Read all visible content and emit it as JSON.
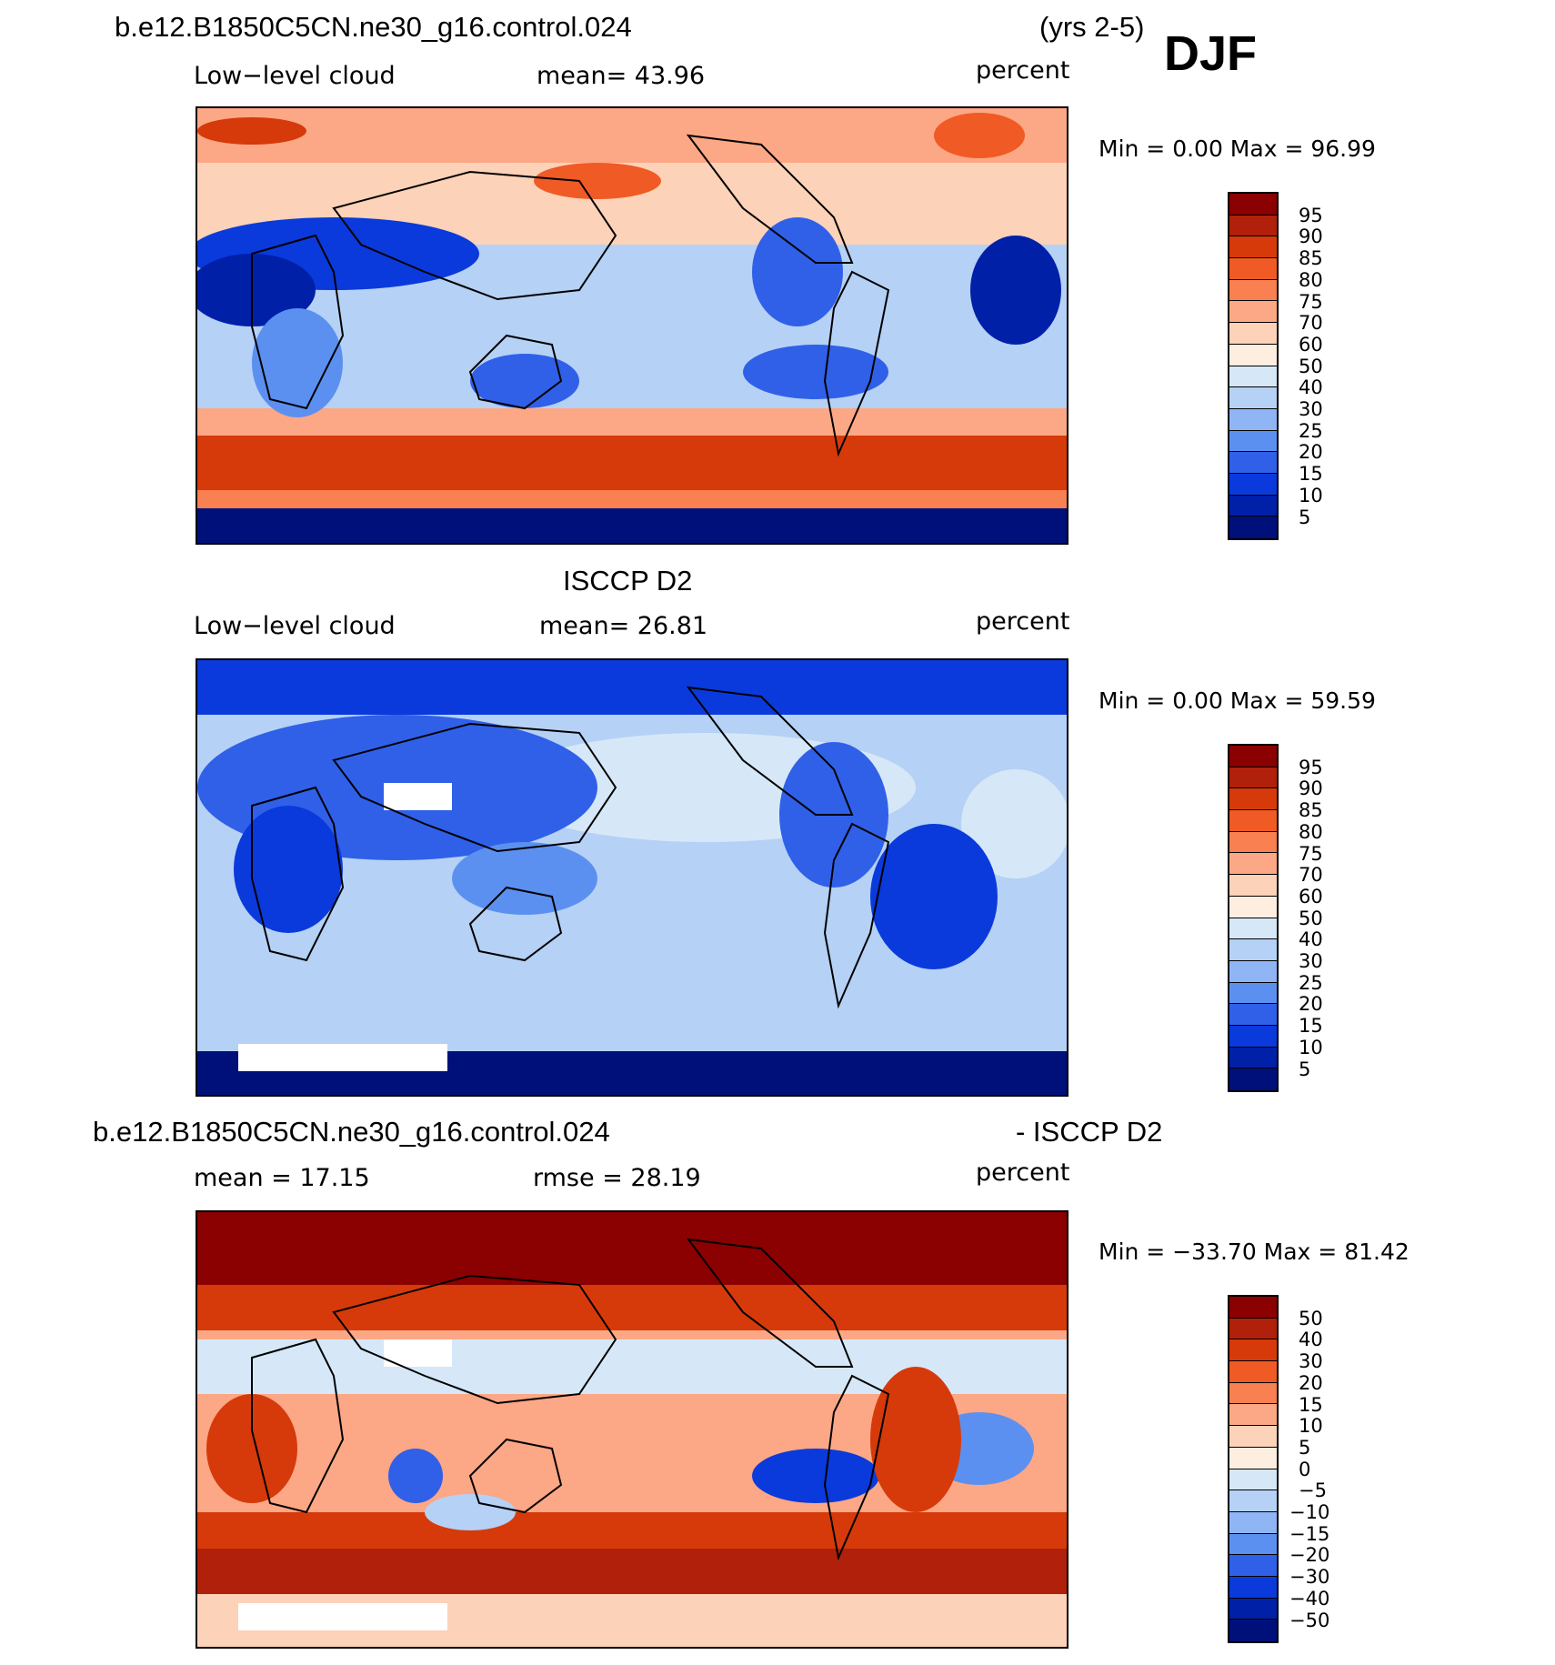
{
  "season": "DJF",
  "years": "(yrs 2-5)",
  "case_name": "b.e12.B1850C5CN.ne30_g16.control.024",
  "panels": [
    {
      "variable": "Low−level cloud",
      "stat": "mean=   43.96",
      "units": "percent",
      "minmax": "Min =     0.00 Max =   96.99",
      "colorbar": {
        "colors": [
          "#8b0000",
          "#b0200a",
          "#d63a0a",
          "#f05a25",
          "#f98050",
          "#fca785",
          "#fcd2b8",
          "#fdeee0",
          "#d6e8f8",
          "#b5d1f5",
          "#8fb5f5",
          "#5c90f0",
          "#3060e8",
          "#0a3adb",
          "#0020a8",
          "#00107a"
        ],
        "labels": [
          "95",
          "90",
          "85",
          "80",
          "75",
          "70",
          "60",
          "50",
          "40",
          "30",
          "25",
          "20",
          "15",
          "10",
          "5"
        ]
      }
    },
    {
      "title": "ISCCP D2",
      "variable": "Low−level cloud",
      "stat": "mean=   26.81",
      "units": "percent",
      "minmax": "Min =     0.00 Max =   59.59",
      "colorbar": {
        "colors": [
          "#8b0000",
          "#b0200a",
          "#d63a0a",
          "#f05a25",
          "#f98050",
          "#fca785",
          "#fcd2b8",
          "#fdeee0",
          "#d6e8f8",
          "#b5d1f5",
          "#8fb5f5",
          "#5c90f0",
          "#3060e8",
          "#0a3adb",
          "#0020a8",
          "#00107a"
        ],
        "labels": [
          "95",
          "90",
          "85",
          "80",
          "75",
          "70",
          "60",
          "50",
          "40",
          "30",
          "25",
          "20",
          "15",
          "10",
          "5"
        ]
      }
    },
    {
      "title_left": "b.e12.B1850C5CN.ne30_g16.control.024",
      "title_right": "- ISCCP D2",
      "stat_left": "mean =   17.15",
      "stat_right": "rmse =   28.19",
      "units": "percent",
      "minmax": "Min = −33.70 Max =   81.42",
      "colorbar": {
        "colors": [
          "#8b0000",
          "#b0200a",
          "#d63a0a",
          "#f05a25",
          "#f98050",
          "#fca785",
          "#fcd2b8",
          "#fdeee0",
          "#d6e8f8",
          "#b5d1f5",
          "#8fb5f5",
          "#5c90f0",
          "#3060e8",
          "#0a3adb",
          "#0020a8",
          "#00107a"
        ],
        "labels": [
          "50",
          "40",
          "30",
          "20",
          "15",
          "10",
          "5",
          "0",
          "−5",
          "−10",
          "−15",
          "−20",
          "−30",
          "−40",
          "−50"
        ]
      }
    }
  ]
}
